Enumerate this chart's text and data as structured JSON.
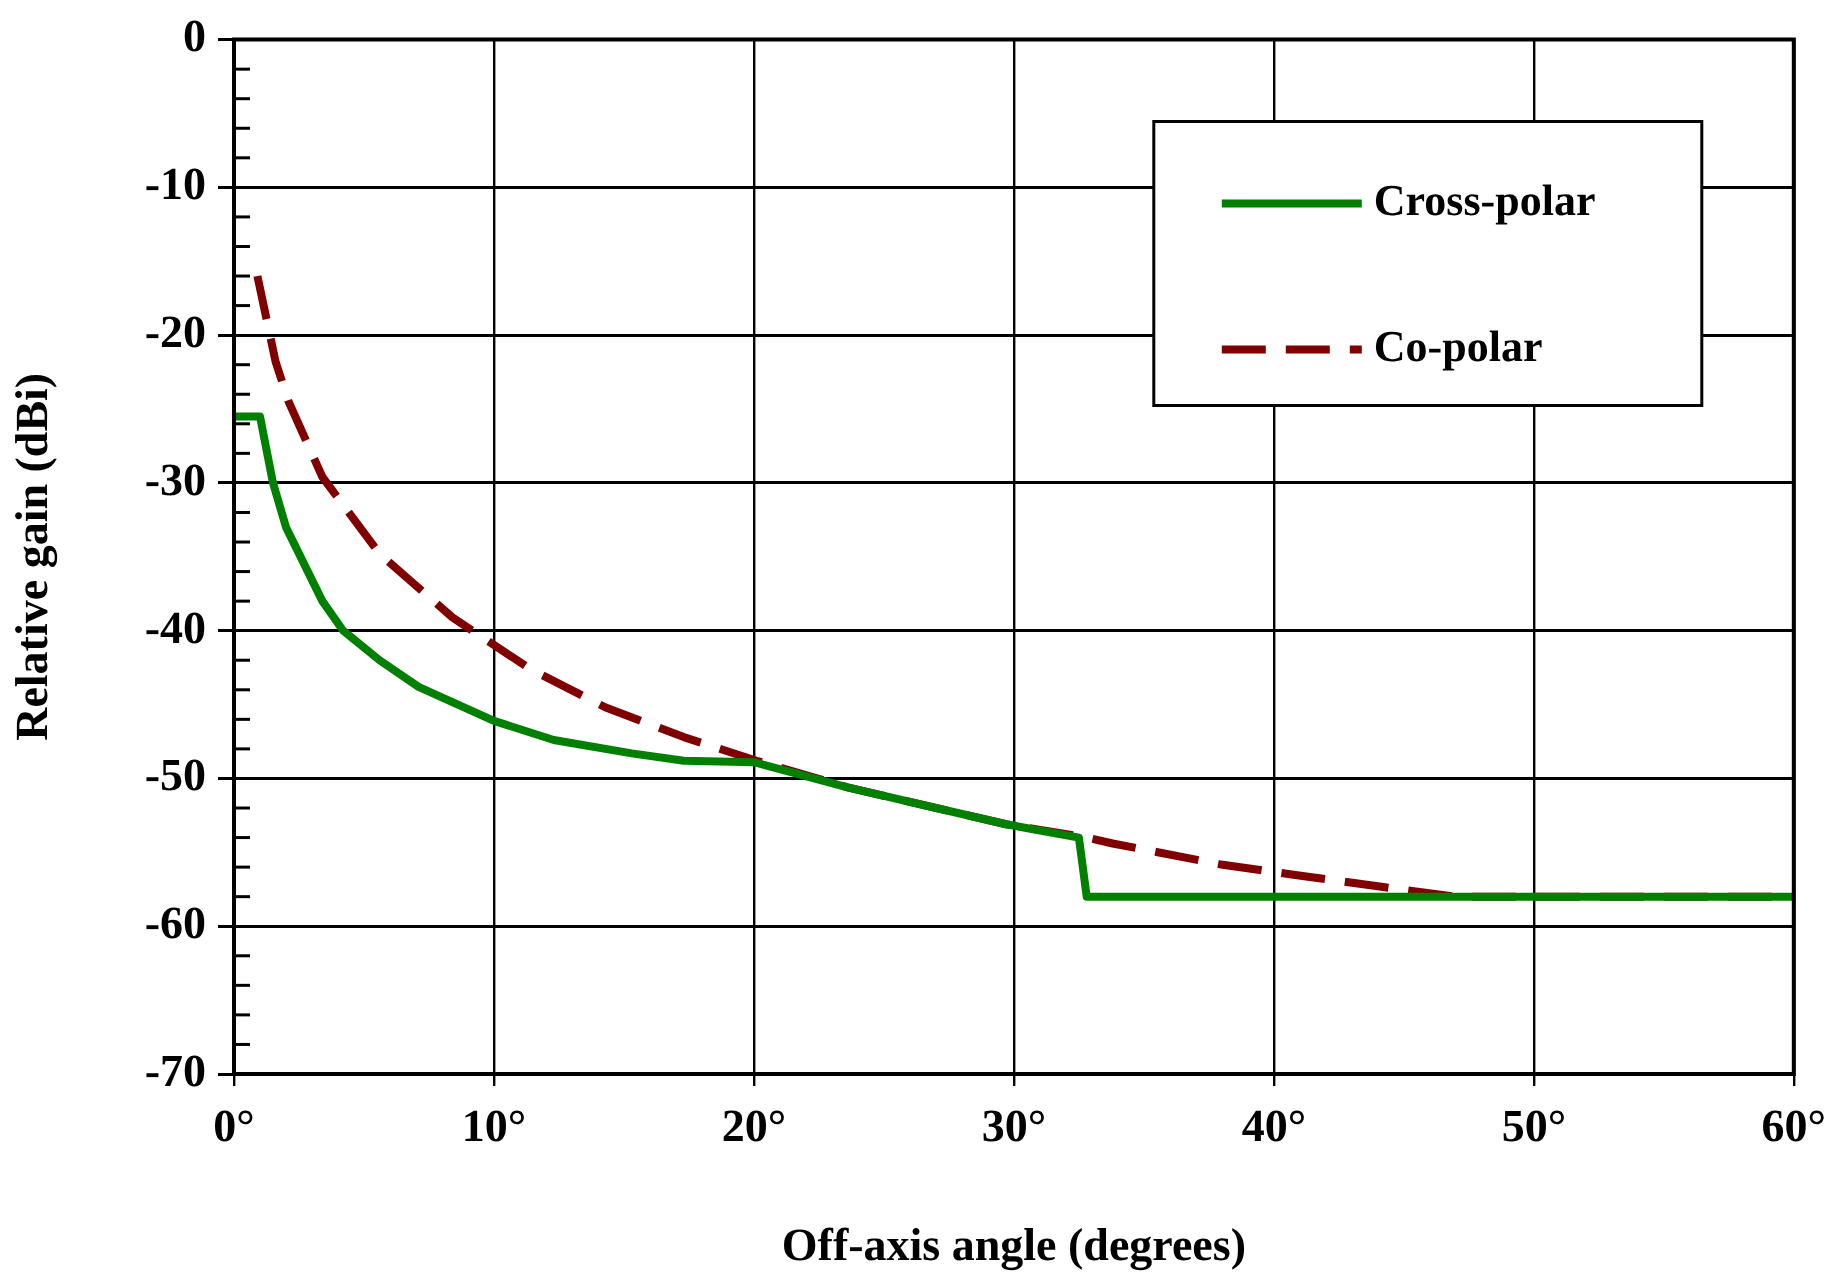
{
  "chart_data": {
    "type": "line",
    "xlabel": "Off-axis angle (degrees)",
    "ylabel": "Relative gain (dBi)",
    "xlim": [
      0,
      60
    ],
    "ylim": [
      -70,
      0
    ],
    "xticks": [
      {
        "value": 0,
        "label": "0°"
      },
      {
        "value": 10,
        "label": "10°"
      },
      {
        "value": 20,
        "label": "20°"
      },
      {
        "value": 30,
        "label": "30°"
      },
      {
        "value": 40,
        "label": "40°"
      },
      {
        "value": 50,
        "label": "50°"
      },
      {
        "value": 60,
        "label": "60°"
      }
    ],
    "yticks": [
      -70,
      {
        "value": -68,
        "label": null
      },
      {
        "value": -66,
        "label": null
      },
      {
        "value": -64,
        "label": null
      },
      {
        "value": -62,
        "label": null
      },
      -60,
      {
        "value": -58,
        "label": null
      },
      {
        "value": -56,
        "label": null
      },
      {
        "value": -54,
        "label": null
      },
      {
        "value": -52,
        "label": null
      },
      -50,
      {
        "value": -48,
        "label": null
      },
      {
        "value": -46,
        "label": null
      },
      {
        "value": -44,
        "label": null
      },
      {
        "value": -42,
        "label": null
      },
      -40,
      {
        "value": -38,
        "label": null
      },
      {
        "value": -36,
        "label": null
      },
      {
        "value": -34,
        "label": null
      },
      {
        "value": -32,
        "label": null
      },
      -30,
      {
        "value": -28,
        "label": null
      },
      {
        "value": -26,
        "label": null
      },
      {
        "value": -24,
        "label": null
      },
      {
        "value": -22,
        "label": null
      },
      -20,
      {
        "value": -18,
        "label": null
      },
      {
        "value": -16,
        "label": null
      },
      {
        "value": -14,
        "label": null
      },
      {
        "value": -12,
        "label": null
      },
      -10,
      {
        "value": -8,
        "label": null
      },
      {
        "value": -6,
        "label": null
      },
      {
        "value": -4,
        "label": null
      },
      {
        "value": -2,
        "label": null
      },
      0
    ],
    "grid": true,
    "legend": "top right",
    "marker": "none",
    "series": [
      {
        "name": "Cross-polar",
        "color": "#008000",
        "line_style": "solid",
        "x": [
          0,
          1,
          1.5,
          2,
          3.4,
          4.2,
          5.6,
          7.1,
          10,
          12.3,
          15.3,
          17.3,
          20,
          23.6,
          29.7,
          32.5,
          32.8,
          60
        ],
        "values": [
          -25.5,
          -25.5,
          -30,
          -33,
          -38,
          -40,
          -42,
          -43.8,
          -46.1,
          -47.4,
          -48.3,
          -48.8,
          -48.9,
          -50.6,
          -53.1,
          -54,
          -58,
          -58
        ]
      },
      {
        "name": "Co-polar",
        "color": "#800000",
        "line_style": "dashed",
        "x": [
          0.9,
          1.6,
          2.1,
          3.4,
          5.6,
          8.4,
          11.4,
          14.3,
          17.3,
          20.1,
          23.6,
          29.7,
          32.8,
          33.8,
          37.9,
          41.1,
          44,
          47,
          60
        ],
        "values": [
          -16,
          -21.8,
          -24.5,
          -29.6,
          -34.8,
          -39.1,
          -42.6,
          -45.2,
          -47.2,
          -48.8,
          -50.6,
          -53.1,
          -54,
          -54.4,
          -55.8,
          -56.6,
          -57.3,
          -58,
          -58
        ]
      }
    ]
  }
}
